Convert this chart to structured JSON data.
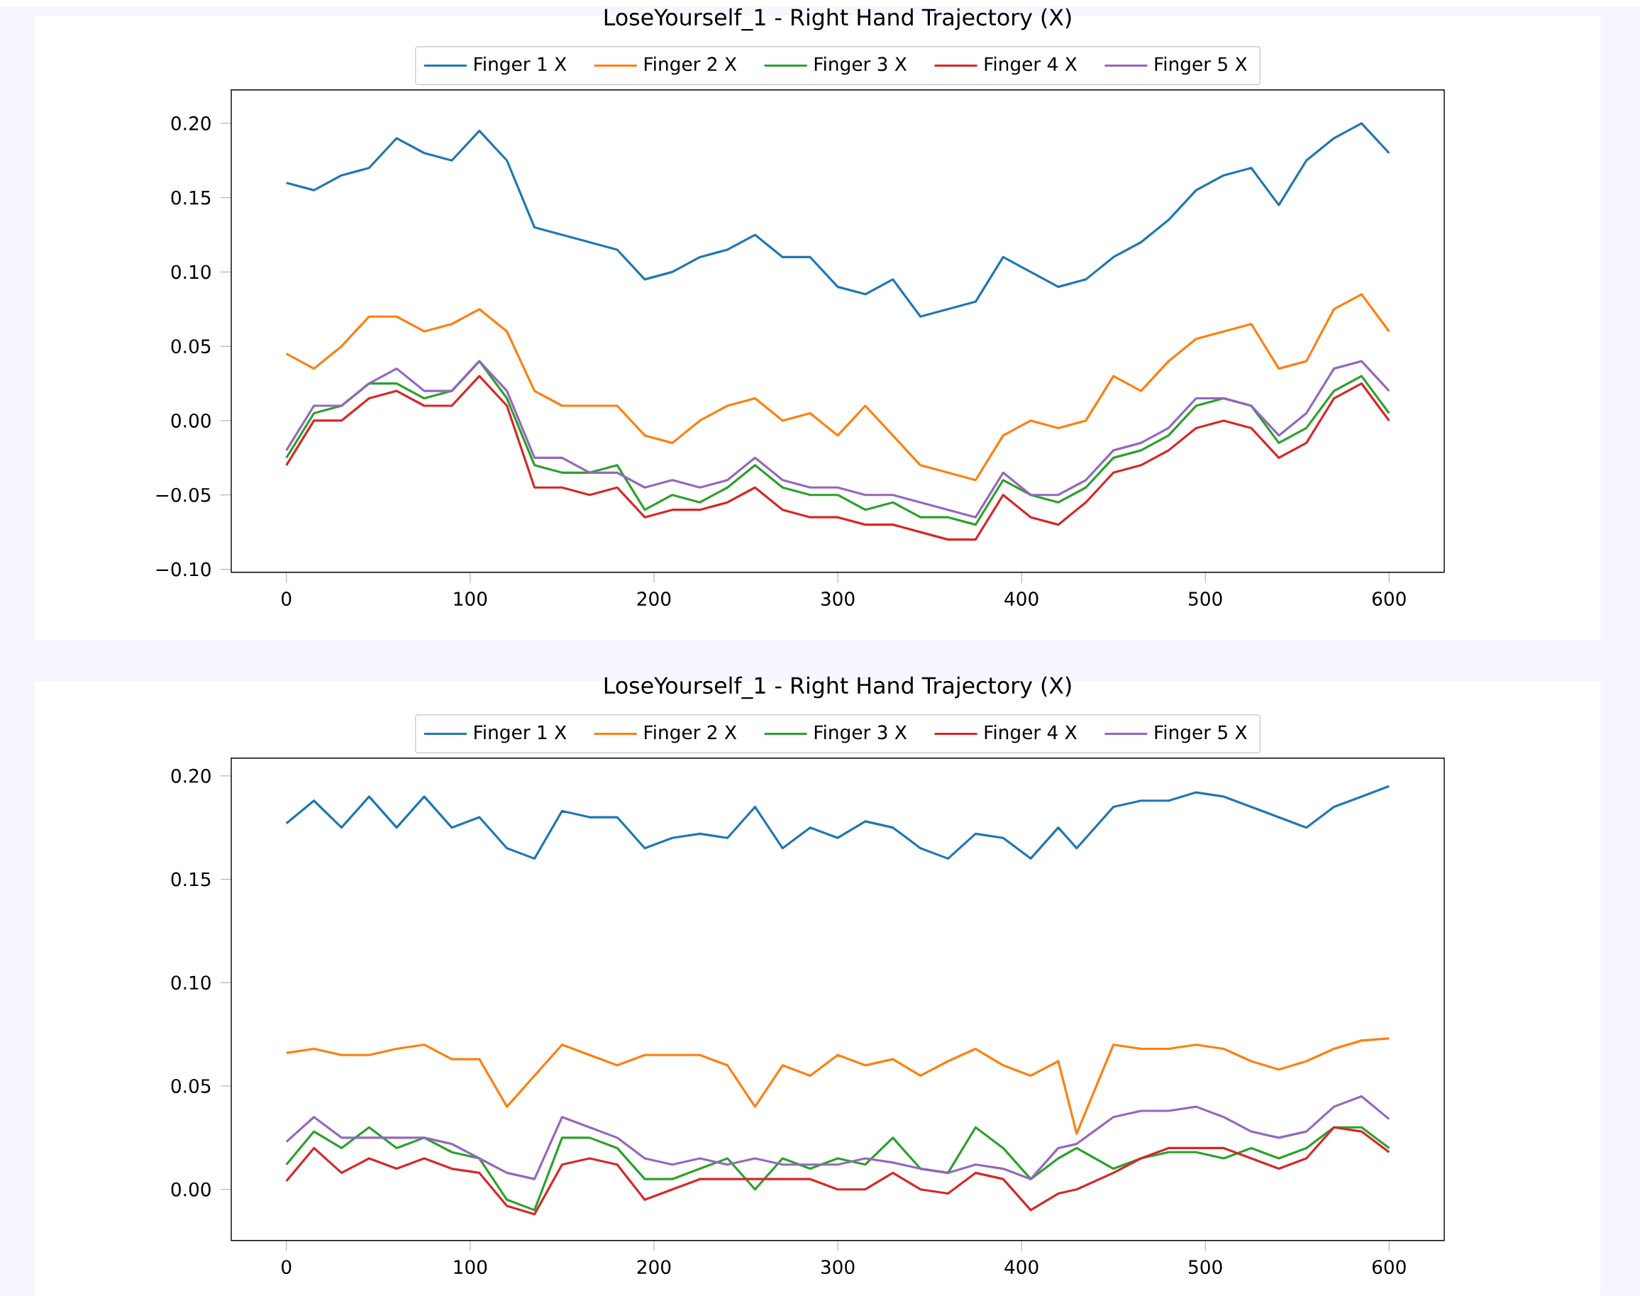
{
  "chart_data": [
    {
      "type": "line",
      "title": "LoseYourself_1 - Right Hand Trajectory (X)",
      "legend": "top",
      "x": [
        0,
        15,
        30,
        45,
        60,
        75,
        90,
        105,
        120,
        135,
        150,
        165,
        180,
        195,
        210,
        225,
        240,
        255,
        270,
        285,
        300,
        315,
        330,
        345,
        360,
        375,
        390,
        405,
        420,
        435,
        450,
        465,
        480,
        495,
        510,
        525,
        540,
        555,
        570,
        585,
        600
      ],
      "xlim": [
        -30,
        630
      ],
      "ylim": [
        -0.102,
        0.2225
      ],
      "xticks": [
        0,
        100,
        200,
        300,
        400,
        500,
        600
      ],
      "yticks": [
        {
          "value": -0.1,
          "label": "−0.10"
        },
        {
          "value": -0.05,
          "label": "−0.05"
        },
        {
          "value": 0,
          "label": "0.00"
        },
        {
          "value": 0.05,
          "label": "0.05"
        },
        {
          "value": 0.1,
          "label": "0.10"
        },
        {
          "value": 0.15,
          "label": "0.15"
        },
        {
          "value": 0.2,
          "label": "0.20"
        }
      ],
      "series": [
        {
          "name": "Finger 1 X",
          "color": "#1f77b4",
          "values": [
            0.16,
            0.155,
            0.165,
            0.17,
            0.19,
            0.18,
            0.175,
            0.195,
            0.175,
            0.13,
            0.125,
            0.12,
            0.115,
            0.095,
            0.1,
            0.11,
            0.115,
            0.125,
            0.11,
            0.11,
            0.09,
            0.085,
            0.095,
            0.07,
            0.075,
            0.08,
            0.11,
            0.1,
            0.09,
            0.095,
            0.11,
            0.12,
            0.135,
            0.155,
            0.165,
            0.17,
            0.145,
            0.175,
            0.19,
            0.2,
            0.18
          ]
        },
        {
          "name": "Finger 2 X",
          "color": "#ff7f0e",
          "values": [
            0.045,
            0.035,
            0.05,
            0.07,
            0.07,
            0.06,
            0.065,
            0.075,
            0.06,
            0.02,
            0.01,
            0.01,
            0.01,
            -0.01,
            -0.015,
            0.0,
            0.01,
            0.015,
            0.0,
            0.005,
            -0.01,
            0.01,
            -0.01,
            -0.03,
            -0.035,
            -0.04,
            -0.01,
            0.0,
            -0.005,
            0.0,
            0.03,
            0.02,
            0.04,
            0.055,
            0.06,
            0.065,
            0.035,
            0.04,
            0.075,
            0.085,
            0.06
          ]
        },
        {
          "name": "Finger 3 X",
          "color": "#2ca02c",
          "values": [
            -0.025,
            0.005,
            0.01,
            0.025,
            0.025,
            0.015,
            0.02,
            0.04,
            0.015,
            -0.03,
            -0.035,
            -0.035,
            -0.03,
            -0.06,
            -0.05,
            -0.055,
            -0.045,
            -0.03,
            -0.045,
            -0.05,
            -0.05,
            -0.06,
            -0.055,
            -0.065,
            -0.065,
            -0.07,
            -0.04,
            -0.05,
            -0.055,
            -0.045,
            -0.025,
            -0.02,
            -0.01,
            0.01,
            0.015,
            0.01,
            -0.015,
            -0.005,
            0.02,
            0.03,
            0.005
          ]
        },
        {
          "name": "Finger 4 X",
          "color": "#d62728",
          "values": [
            -0.03,
            0.0,
            0.0,
            0.015,
            0.02,
            0.01,
            0.01,
            0.03,
            0.01,
            -0.045,
            -0.045,
            -0.05,
            -0.045,
            -0.065,
            -0.06,
            -0.06,
            -0.055,
            -0.045,
            -0.06,
            -0.065,
            -0.065,
            -0.07,
            -0.07,
            -0.075,
            -0.08,
            -0.08,
            -0.05,
            -0.065,
            -0.07,
            -0.055,
            -0.035,
            -0.03,
            -0.02,
            -0.005,
            0.0,
            -0.005,
            -0.025,
            -0.015,
            0.015,
            0.025,
            0.0
          ]
        },
        {
          "name": "Finger 5 X",
          "color": "#9467bd",
          "values": [
            -0.02,
            0.01,
            0.01,
            0.025,
            0.035,
            0.02,
            0.02,
            0.04,
            0.02,
            -0.025,
            -0.025,
            -0.035,
            -0.035,
            -0.045,
            -0.04,
            -0.045,
            -0.04,
            -0.025,
            -0.04,
            -0.045,
            -0.045,
            -0.05,
            -0.05,
            -0.055,
            -0.06,
            -0.065,
            -0.035,
            -0.05,
            -0.05,
            -0.04,
            -0.02,
            -0.015,
            -0.005,
            0.015,
            0.015,
            0.01,
            -0.01,
            0.005,
            0.035,
            0.04,
            0.02
          ]
        }
      ]
    },
    {
      "type": "line",
      "title": "LoseYourself_1 - Right Hand Trajectory (X)",
      "legend": "top",
      "x": [
        0,
        15,
        30,
        45,
        60,
        75,
        90,
        105,
        120,
        135,
        150,
        165,
        180,
        195,
        210,
        225,
        240,
        255,
        270,
        285,
        300,
        315,
        330,
        345,
        360,
        375,
        390,
        405,
        420,
        430,
        450,
        465,
        480,
        495,
        510,
        525,
        540,
        555,
        570,
        585,
        600
      ],
      "xlim": [
        -30,
        630
      ],
      "ylim": [
        -0.0247,
        0.2086
      ],
      "xticks": [
        0,
        100,
        200,
        300,
        400,
        500,
        600
      ],
      "yticks": [
        {
          "value": 0,
          "label": "0.00"
        },
        {
          "value": 0.05,
          "label": "0.05"
        },
        {
          "value": 0.1,
          "label": "0.10"
        },
        {
          "value": 0.15,
          "label": "0.15"
        },
        {
          "value": 0.2,
          "label": "0.20"
        }
      ],
      "series": [
        {
          "name": "Finger 1 X",
          "color": "#1f77b4",
          "values": [
            0.177,
            0.188,
            0.175,
            0.19,
            0.175,
            0.19,
            0.175,
            0.18,
            0.165,
            0.16,
            0.183,
            0.18,
            0.18,
            0.165,
            0.17,
            0.172,
            0.17,
            0.185,
            0.165,
            0.175,
            0.17,
            0.178,
            0.175,
            0.165,
            0.16,
            0.172,
            0.17,
            0.16,
            0.175,
            0.165,
            0.185,
            0.188,
            0.188,
            0.192,
            0.19,
            0.185,
            0.18,
            0.175,
            0.185,
            0.19,
            0.195
          ]
        },
        {
          "name": "Finger 2 X",
          "color": "#ff7f0e",
          "values": [
            0.066,
            0.068,
            0.065,
            0.065,
            0.068,
            0.07,
            0.063,
            0.063,
            0.04,
            0.055,
            0.07,
            0.065,
            0.06,
            0.065,
            0.065,
            0.065,
            0.06,
            0.04,
            0.06,
            0.055,
            0.065,
            0.06,
            0.063,
            0.055,
            0.062,
            0.068,
            0.06,
            0.055,
            0.062,
            0.027,
            0.07,
            0.068,
            0.068,
            0.07,
            0.068,
            0.062,
            0.058,
            0.062,
            0.068,
            0.072,
            0.073
          ]
        },
        {
          "name": "Finger 3 X",
          "color": "#2ca02c",
          "values": [
            0.012,
            0.028,
            0.02,
            0.03,
            0.02,
            0.025,
            0.018,
            0.015,
            -0.005,
            -0.01,
            0.025,
            0.025,
            0.02,
            0.005,
            0.005,
            0.01,
            0.015,
            0.0,
            0.015,
            0.01,
            0.015,
            0.012,
            0.025,
            0.01,
            0.008,
            0.03,
            0.02,
            0.005,
            0.015,
            0.02,
            0.01,
            0.015,
            0.018,
            0.018,
            0.015,
            0.02,
            0.015,
            0.02,
            0.03,
            0.03,
            0.02
          ]
        },
        {
          "name": "Finger 4 X",
          "color": "#d62728",
          "values": [
            0.004,
            0.02,
            0.008,
            0.015,
            0.01,
            0.015,
            0.01,
            0.008,
            -0.008,
            -0.012,
            0.012,
            0.015,
            0.012,
            -0.005,
            0.0,
            0.005,
            0.005,
            0.005,
            0.005,
            0.005,
            0.0,
            0.0,
            0.008,
            0.0,
            -0.002,
            0.008,
            0.005,
            -0.01,
            -0.002,
            0.0,
            0.008,
            0.015,
            0.02,
            0.02,
            0.02,
            0.015,
            0.01,
            0.015,
            0.03,
            0.028,
            0.018
          ]
        },
        {
          "name": "Finger 5 X",
          "color": "#9467bd",
          "values": [
            0.023,
            0.035,
            0.025,
            0.025,
            0.025,
            0.025,
            0.022,
            0.015,
            0.008,
            0.005,
            0.035,
            0.03,
            0.025,
            0.015,
            0.012,
            0.015,
            0.012,
            0.015,
            0.012,
            0.012,
            0.012,
            0.015,
            0.013,
            0.01,
            0.008,
            0.012,
            0.01,
            0.005,
            0.02,
            0.022,
            0.035,
            0.038,
            0.038,
            0.04,
            0.035,
            0.028,
            0.025,
            0.028,
            0.04,
            0.045,
            0.034
          ]
        }
      ]
    }
  ]
}
